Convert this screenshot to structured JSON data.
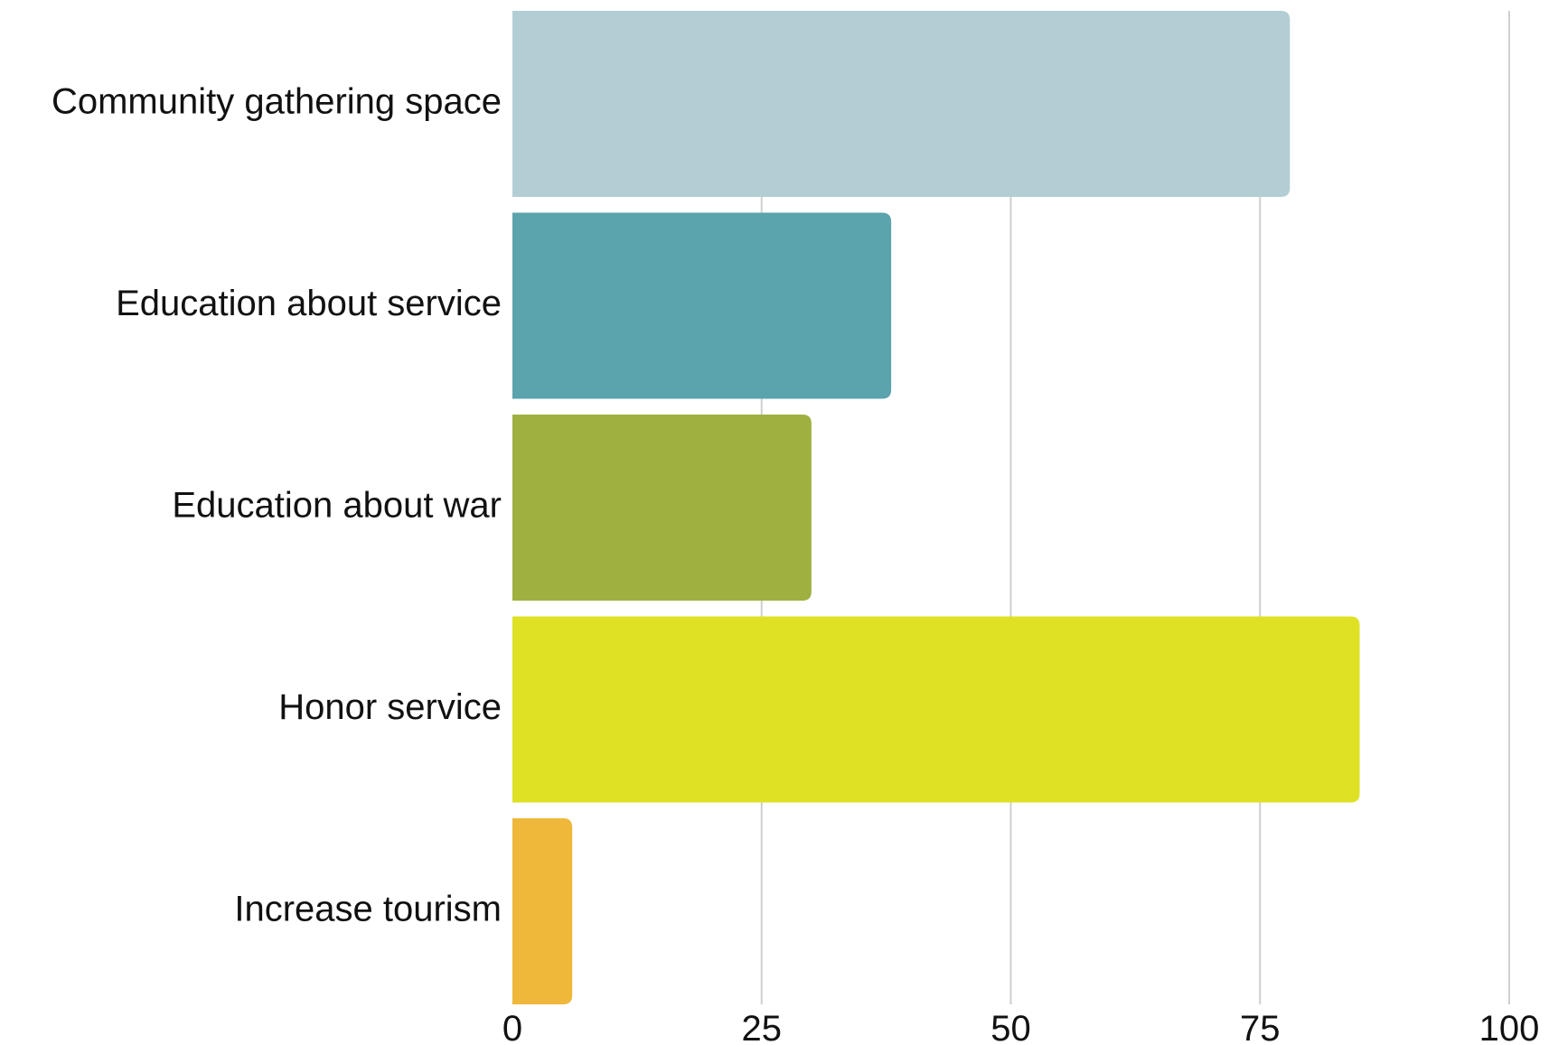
{
  "chart_data": {
    "type": "bar",
    "orientation": "horizontal",
    "categories": [
      "Community gathering space",
      "Education about service",
      "Education about war",
      "Honor service",
      "Increase tourism"
    ],
    "values": [
      78,
      38,
      30,
      85,
      6
    ],
    "colors": [
      "#b2ced4",
      "#5ba3ad",
      "#a0b040",
      "#dfe224",
      "#efb83a"
    ],
    "xlim": [
      0,
      100
    ],
    "xticks": [
      0,
      25,
      50,
      75,
      100
    ],
    "xtick_labels": [
      "0",
      "25",
      "50",
      "75",
      "100"
    ],
    "grid": "vertical",
    "gridline_color": "#cfcfcf",
    "title": "",
    "xlabel": "",
    "ylabel": ""
  }
}
